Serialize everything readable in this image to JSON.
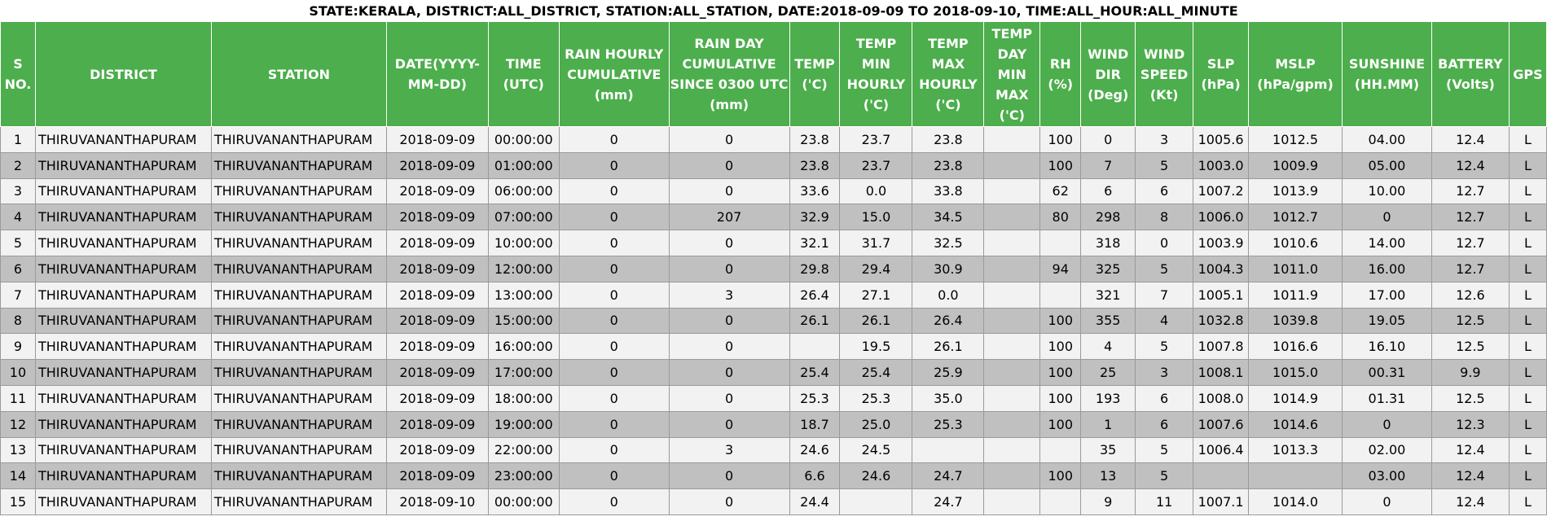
{
  "title": "STATE:KERALA, DISTRICT:ALL_DISTRICT, STATION:ALL_STATION, DATE:2018-09-09 TO 2018-09-10, TIME:ALL_HOUR:ALL_MINUTE",
  "columns": [
    "S NO.",
    "DISTRICT",
    "STATION",
    "DATE(YYYY-MM-DD)",
    "TIME (UTC)",
    "RAIN HOURLY CUMULATIVE (mm)",
    "RAIN DAY CUMULATIVE SINCE 0300 UTC (mm)",
    "TEMP ('C)",
    "TEMP MIN HOURLY ('C)",
    "TEMP MAX HOURLY ('C)",
    "TEMP DAY MIN MAX ('C)",
    "RH (%)",
    "WIND DIR (Deg)",
    "WIND SPEED (Kt)",
    "SLP (hPa)",
    "MSLP (hPa/gpm)",
    "SUNSHINE (HH.MM)",
    "BATTERY (Volts)",
    "GPS"
  ],
  "rows": [
    [
      "1",
      "THIRUVANANTHAPURAM",
      "THIRUVANANTHAPURAM",
      "2018-09-09",
      "00:00:00",
      "0",
      "0",
      "23.8",
      "23.7",
      "23.8",
      "",
      "100",
      "0",
      "3",
      "1005.6",
      "1012.5",
      "04.00",
      "12.4",
      "L"
    ],
    [
      "2",
      "THIRUVANANTHAPURAM",
      "THIRUVANANTHAPURAM",
      "2018-09-09",
      "01:00:00",
      "0",
      "0",
      "23.8",
      "23.7",
      "23.8",
      "",
      "100",
      "7",
      "5",
      "1003.0",
      "1009.9",
      "05.00",
      "12.4",
      "L"
    ],
    [
      "3",
      "THIRUVANANTHAPURAM",
      "THIRUVANANTHAPURAM",
      "2018-09-09",
      "06:00:00",
      "0",
      "0",
      "33.6",
      "0.0",
      "33.8",
      "",
      "62",
      "6",
      "6",
      "1007.2",
      "1013.9",
      "10.00",
      "12.7",
      "L"
    ],
    [
      "4",
      "THIRUVANANTHAPURAM",
      "THIRUVANANTHAPURAM",
      "2018-09-09",
      "07:00:00",
      "0",
      "207",
      "32.9",
      "15.0",
      "34.5",
      "",
      "80",
      "298",
      "8",
      "1006.0",
      "1012.7",
      "0",
      "12.7",
      "L"
    ],
    [
      "5",
      "THIRUVANANTHAPURAM",
      "THIRUVANANTHAPURAM",
      "2018-09-09",
      "10:00:00",
      "0",
      "0",
      "32.1",
      "31.7",
      "32.5",
      "",
      "",
      "318",
      "0",
      "1003.9",
      "1010.6",
      "14.00",
      "12.7",
      "L"
    ],
    [
      "6",
      "THIRUVANANTHAPURAM",
      "THIRUVANANTHAPURAM",
      "2018-09-09",
      "12:00:00",
      "0",
      "0",
      "29.8",
      "29.4",
      "30.9",
      "",
      "94",
      "325",
      "5",
      "1004.3",
      "1011.0",
      "16.00",
      "12.7",
      "L"
    ],
    [
      "7",
      "THIRUVANANTHAPURAM",
      "THIRUVANANTHAPURAM",
      "2018-09-09",
      "13:00:00",
      "0",
      "3",
      "26.4",
      "27.1",
      "0.0",
      "",
      "",
      "321",
      "7",
      "1005.1",
      "1011.9",
      "17.00",
      "12.6",
      "L"
    ],
    [
      "8",
      "THIRUVANANTHAPURAM",
      "THIRUVANANTHAPURAM",
      "2018-09-09",
      "15:00:00",
      "0",
      "0",
      "26.1",
      "26.1",
      "26.4",
      "",
      "100",
      "355",
      "4",
      "1032.8",
      "1039.8",
      "19.05",
      "12.5",
      "L"
    ],
    [
      "9",
      "THIRUVANANTHAPURAM",
      "THIRUVANANTHAPURAM",
      "2018-09-09",
      "16:00:00",
      "0",
      "0",
      "",
      "19.5",
      "26.1",
      "",
      "100",
      "4",
      "5",
      "1007.8",
      "1016.6",
      "16.10",
      "12.5",
      "L"
    ],
    [
      "10",
      "THIRUVANANTHAPURAM",
      "THIRUVANANTHAPURAM",
      "2018-09-09",
      "17:00:00",
      "0",
      "0",
      "25.4",
      "25.4",
      "25.9",
      "",
      "100",
      "25",
      "3",
      "1008.1",
      "1015.0",
      "00.31",
      "9.9",
      "L"
    ],
    [
      "11",
      "THIRUVANANTHAPURAM",
      "THIRUVANANTHAPURAM",
      "2018-09-09",
      "18:00:00",
      "0",
      "0",
      "25.3",
      "25.3",
      "35.0",
      "",
      "100",
      "193",
      "6",
      "1008.0",
      "1014.9",
      "01.31",
      "12.5",
      "L"
    ],
    [
      "12",
      "THIRUVANANTHAPURAM",
      "THIRUVANANTHAPURAM",
      "2018-09-09",
      "19:00:00",
      "0",
      "0",
      "18.7",
      "25.0",
      "25.3",
      "",
      "100",
      "1",
      "6",
      "1007.6",
      "1014.6",
      "0",
      "12.3",
      "L"
    ],
    [
      "13",
      "THIRUVANANTHAPURAM",
      "THIRUVANANTHAPURAM",
      "2018-09-09",
      "22:00:00",
      "0",
      "3",
      "24.6",
      "24.5",
      "",
      "",
      "",
      "35",
      "5",
      "1006.4",
      "1013.3",
      "02.00",
      "12.4",
      "L"
    ],
    [
      "14",
      "THIRUVANANTHAPURAM",
      "THIRUVANANTHAPURAM",
      "2018-09-09",
      "23:00:00",
      "0",
      "0",
      "6.6",
      "24.6",
      "24.7",
      "",
      "100",
      "13",
      "5",
      "",
      "",
      "03.00",
      "12.4",
      "L"
    ],
    [
      "15",
      "THIRUVANANTHAPURAM",
      "THIRUVANANTHAPURAM",
      "2018-09-10",
      "00:00:00",
      "0",
      "0",
      "24.4",
      "",
      "24.7",
      "",
      "",
      "9",
      "11",
      "1007.1",
      "1014.0",
      "0",
      "12.4",
      "L"
    ]
  ],
  "colors": {
    "header_bg": "#4cae4c",
    "header_text": "#ffffff",
    "row_light": "#f2f2f2",
    "row_dark": "#c0c0c0"
  }
}
